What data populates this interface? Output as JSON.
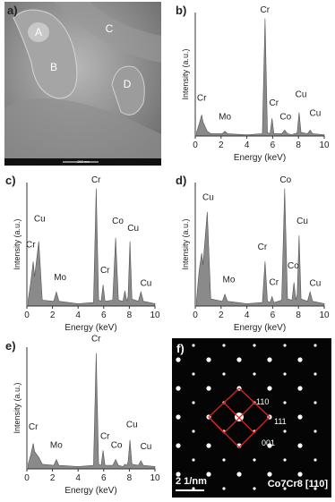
{
  "images": {
    "a": {
      "panel": "a)",
      "regions": [
        "A",
        "B",
        "C",
        "D"
      ],
      "scale_bar": "200 nm"
    },
    "f": {
      "panel": "f)",
      "spots": [
        "110",
        "111",
        "001"
      ],
      "scale_bar": "2 1/nm",
      "phase": "Co7Cr8 [110]"
    }
  },
  "chart_data": [
    {
      "type": "area",
      "panel": "b)",
      "xlabel": "Energy (keV)",
      "ylabel": "Intensity (a.u.)",
      "color": "#8a8a8a",
      "x": [
        0.1,
        0.3,
        0.5,
        0.6,
        0.93,
        1.2,
        2.1,
        2.3,
        2.5,
        4,
        5.2,
        5.41,
        5.6,
        5.8,
        5.95,
        6.1,
        6.7,
        6.93,
        7.15,
        7.5,
        7.65,
        7.8,
        7.9,
        8.05,
        8.2,
        8.7,
        8.9,
        9.1,
        10
      ],
      "values": [
        3,
        10,
        18,
        12,
        4,
        2,
        2,
        4,
        2,
        1,
        2,
        100,
        3,
        2,
        15,
        2,
        2,
        5,
        2,
        1,
        2,
        2,
        3,
        20,
        3,
        2,
        5,
        2,
        1
      ],
      "xlim": [
        0,
        10
      ],
      "xticks": [
        0,
        2,
        4,
        6,
        8,
        10
      ],
      "ylim": [
        0,
        105
      ],
      "annotations": [
        {
          "text": "Cr",
          "x": 0.5,
          "y": 30
        },
        {
          "text": "Mo",
          "x": 2.3,
          "y": 14
        },
        {
          "text": "Cr",
          "x": 5.4,
          "y": 105
        },
        {
          "text": "Cr",
          "x": 6.1,
          "y": 26
        },
        {
          "text": "Co",
          "x": 7.0,
          "y": 14
        },
        {
          "text": "Cu",
          "x": 8.2,
          "y": 33
        },
        {
          "text": "Cu",
          "x": 9.3,
          "y": 17
        }
      ]
    },
    {
      "type": "area",
      "panel": "c)",
      "xlabel": "Energy (keV)",
      "ylabel": "Intensity (a.u.)",
      "color": "#8a8a8a",
      "x": [
        0.1,
        0.3,
        0.5,
        0.6,
        0.93,
        1.2,
        2.1,
        2.3,
        2.5,
        4,
        5.2,
        5.41,
        5.6,
        5.8,
        5.95,
        6.1,
        6.7,
        6.93,
        7.15,
        7.5,
        7.65,
        7.8,
        7.9,
        8.05,
        8.2,
        8.7,
        8.9,
        9.1,
        10
      ],
      "values": [
        5,
        20,
        38,
        25,
        55,
        5,
        4,
        12,
        4,
        2,
        3,
        100,
        5,
        4,
        18,
        4,
        5,
        58,
        5,
        4,
        13,
        4,
        8,
        55,
        6,
        4,
        12,
        4,
        2
      ],
      "xlim": [
        0,
        10
      ],
      "xticks": [
        0,
        2,
        4,
        6,
        8,
        10
      ],
      "ylim": [
        0,
        105
      ],
      "annotations": [
        {
          "text": "Cu",
          "x": 1.0,
          "y": 72
        },
        {
          "text": "Cr",
          "x": 0.3,
          "y": 50
        },
        {
          "text": "Mo",
          "x": 2.6,
          "y": 22
        },
        {
          "text": "Cr",
          "x": 5.4,
          "y": 105
        },
        {
          "text": "Cr",
          "x": 6.1,
          "y": 28
        },
        {
          "text": "Co",
          "x": 7.1,
          "y": 70
        },
        {
          "text": "Cu",
          "x": 8.3,
          "y": 64
        },
        {
          "text": "Cu",
          "x": 9.3,
          "y": 17
        }
      ]
    },
    {
      "type": "area",
      "panel": "d)",
      "xlabel": "Energy (keV)",
      "ylabel": "Intensity (a.u.)",
      "color": "#8a8a8a",
      "x": [
        0.1,
        0.3,
        0.5,
        0.6,
        0.93,
        1.2,
        2.1,
        2.3,
        2.5,
        4,
        5.2,
        5.41,
        5.6,
        5.8,
        5.95,
        6.1,
        6.7,
        6.93,
        7.15,
        7.5,
        7.65,
        7.8,
        7.9,
        8.05,
        8.2,
        8.7,
        8.9,
        9.1,
        10
      ],
      "values": [
        5,
        30,
        45,
        35,
        80,
        6,
        4,
        10,
        4,
        2,
        3,
        38,
        4,
        3,
        8,
        3,
        5,
        100,
        6,
        5,
        20,
        5,
        10,
        60,
        6,
        4,
        12,
        4,
        2
      ],
      "xlim": [
        0,
        10
      ],
      "xticks": [
        0,
        2,
        4,
        6,
        8,
        10
      ],
      "ylim": [
        0,
        105
      ],
      "annotations": [
        {
          "text": "Cu",
          "x": 1.0,
          "y": 90
        },
        {
          "text": "Mo",
          "x": 2.6,
          "y": 20
        },
        {
          "text": "Cr",
          "x": 5.2,
          "y": 48
        },
        {
          "text": "Cr",
          "x": 6.1,
          "y": 18
        },
        {
          "text": "Co",
          "x": 7.0,
          "y": 105
        },
        {
          "text": "Co",
          "x": 7.6,
          "y": 32
        },
        {
          "text": "Cu",
          "x": 8.3,
          "y": 70
        },
        {
          "text": "Cu",
          "x": 9.3,
          "y": 17
        }
      ]
    },
    {
      "type": "area",
      "panel": "e)",
      "xlabel": "Energy (keV)",
      "ylabel": "Intensity (a.u.)",
      "color": "#8a8a8a",
      "x": [
        0.1,
        0.3,
        0.5,
        0.6,
        0.93,
        1.2,
        2.1,
        2.3,
        2.5,
        4,
        5.2,
        5.41,
        5.6,
        5.8,
        5.95,
        6.1,
        6.7,
        6.93,
        7.15,
        7.5,
        7.65,
        7.8,
        7.9,
        8.05,
        8.2,
        8.7,
        8.9,
        9.1,
        10
      ],
      "values": [
        4,
        12,
        22,
        15,
        10,
        4,
        3,
        8,
        3,
        2,
        3,
        100,
        4,
        3,
        16,
        3,
        3,
        8,
        3,
        2,
        4,
        3,
        6,
        25,
        4,
        3,
        7,
        3,
        2
      ],
      "xlim": [
        0,
        10
      ],
      "xticks": [
        0,
        2,
        4,
        6,
        8,
        10
      ],
      "ylim": [
        0,
        105
      ],
      "annotations": [
        {
          "text": "Cr",
          "x": 0.5,
          "y": 34
        },
        {
          "text": "Mo",
          "x": 2.3,
          "y": 18
        },
        {
          "text": "Cr",
          "x": 5.4,
          "y": 110
        },
        {
          "text": "Cr",
          "x": 6.1,
          "y": 26
        },
        {
          "text": "Co",
          "x": 7.0,
          "y": 18
        },
        {
          "text": "Cu",
          "x": 8.2,
          "y": 36
        },
        {
          "text": "Cu",
          "x": 9.3,
          "y": 17
        }
      ]
    }
  ]
}
